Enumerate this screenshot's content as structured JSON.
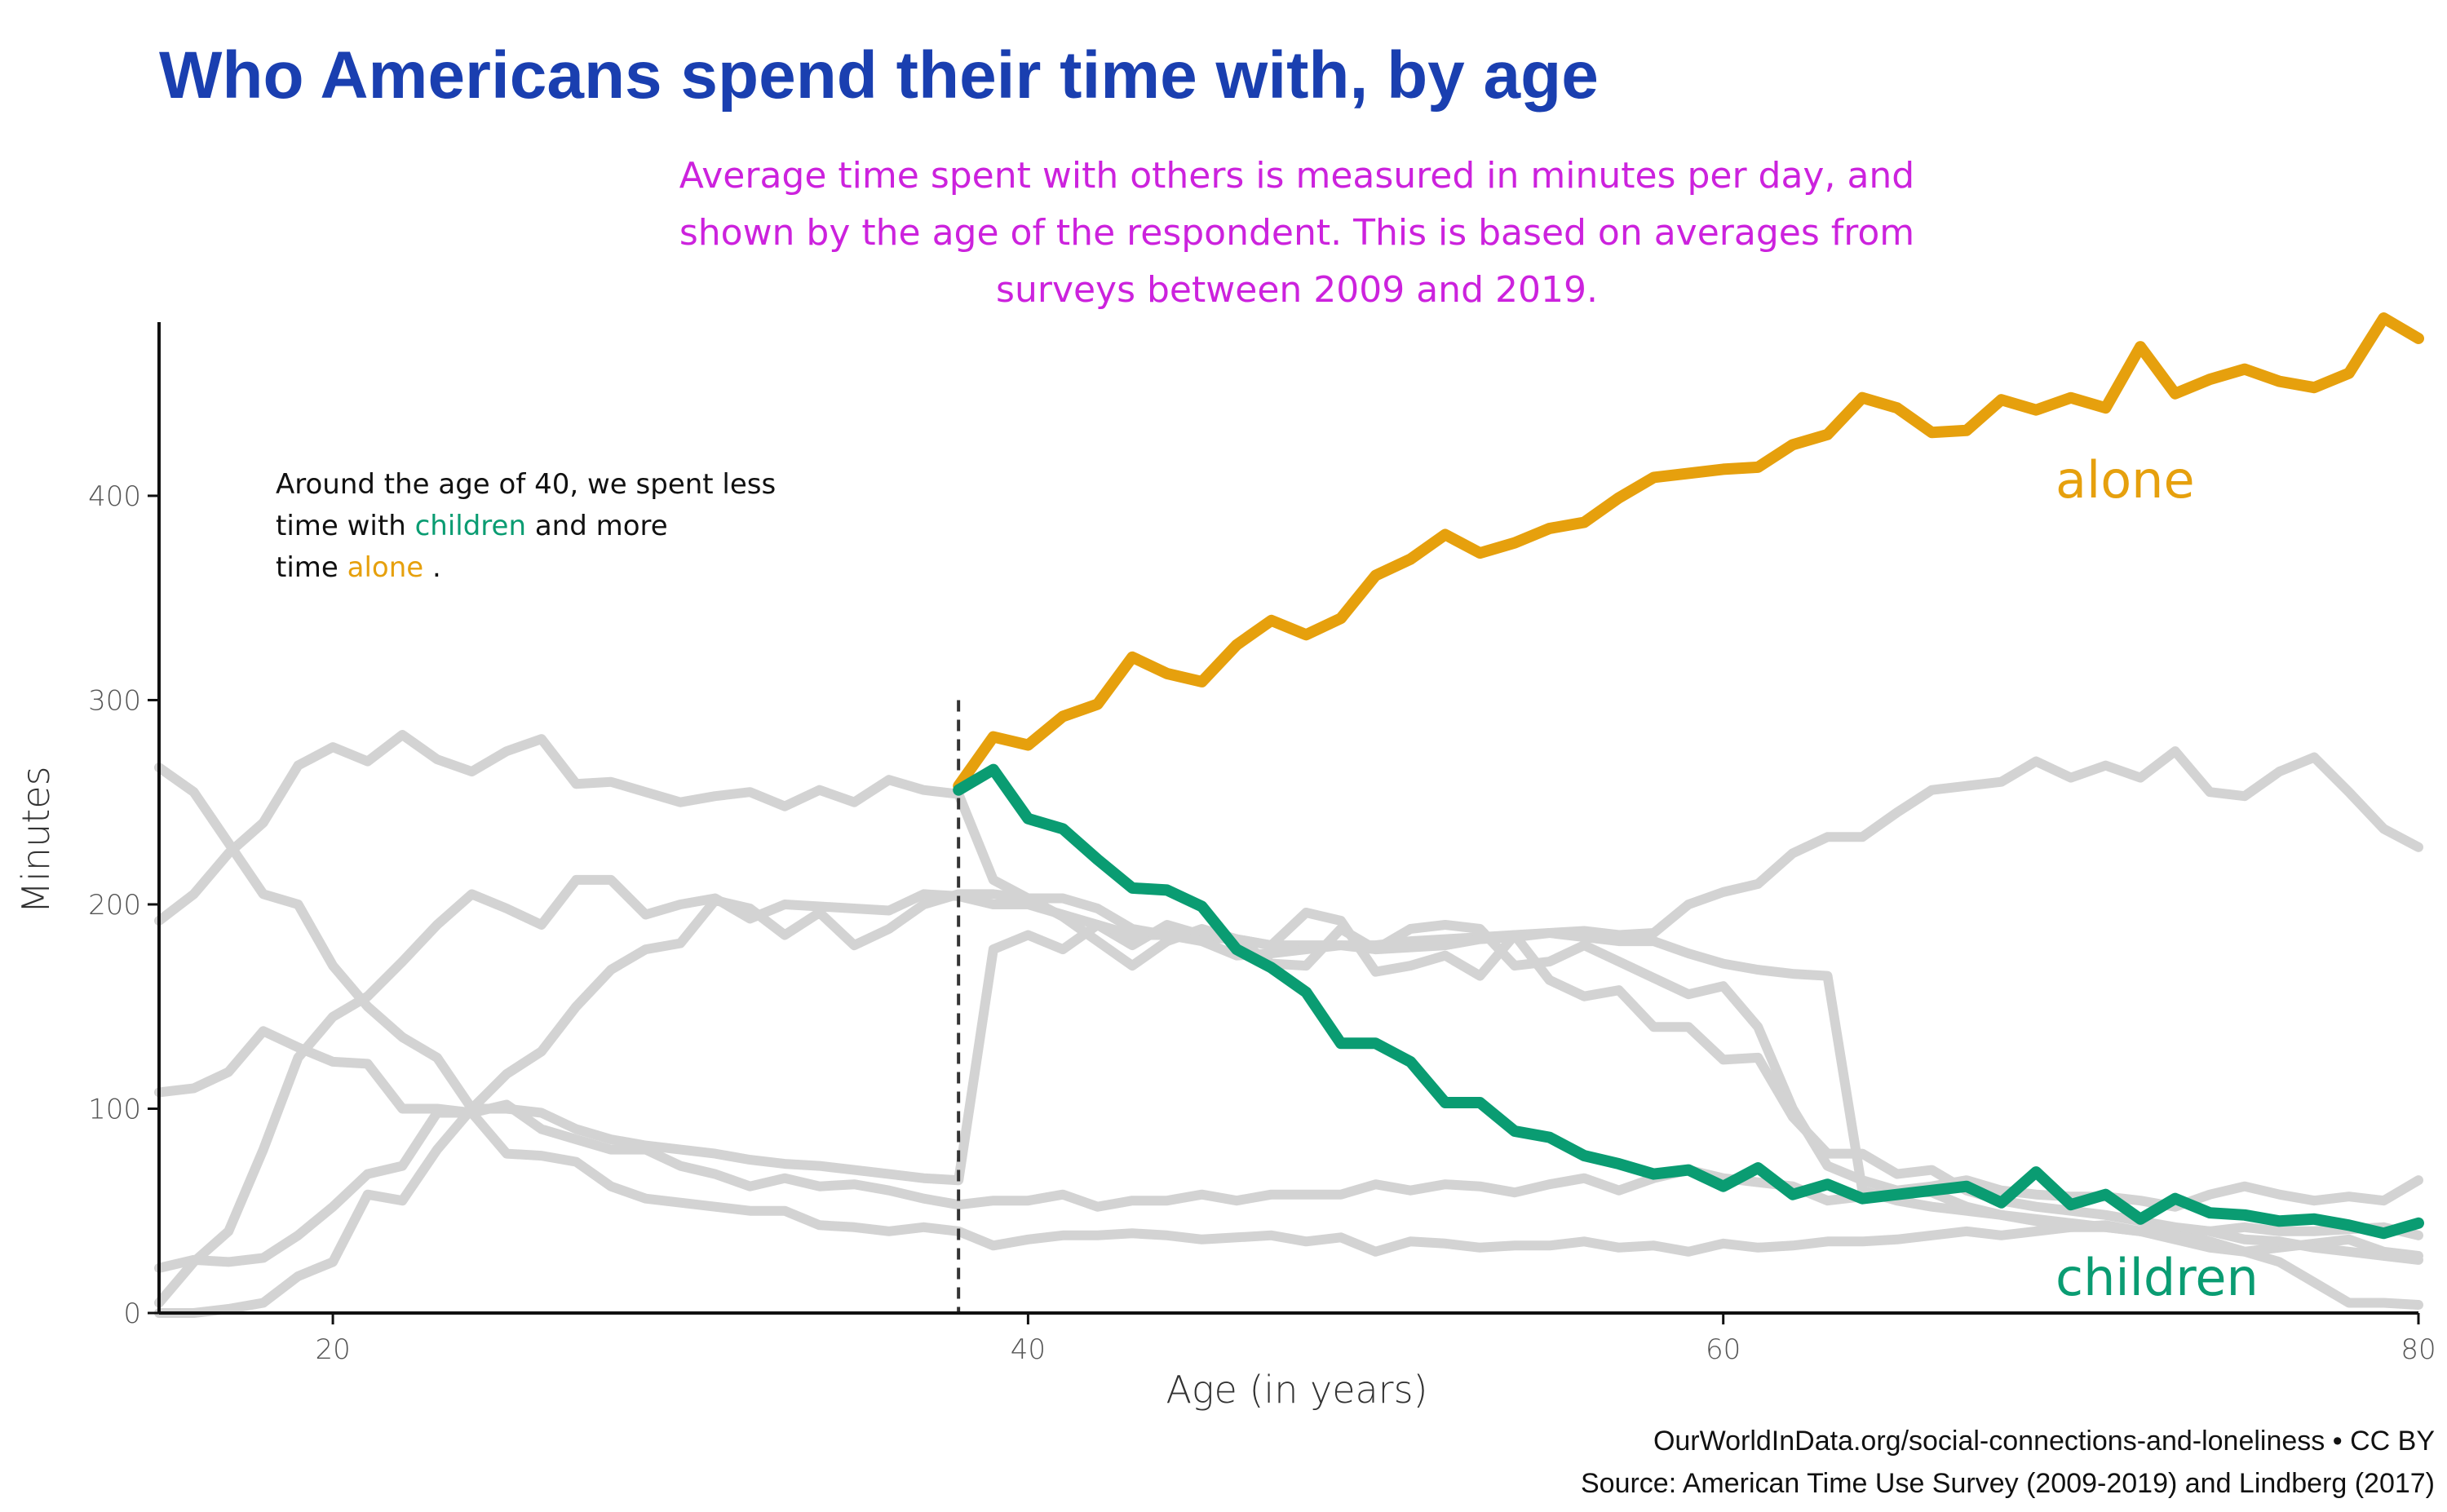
{
  "chart_data": {
    "type": "line",
    "title": "Who Americans spend their time with, by age",
    "subtitle": [
      "Average time spent with others is measured in minutes per day, and",
      "shown by the age of the respondent. This is based on averages from",
      "surveys between 2009 and 2019."
    ],
    "xlabel": "Age (in years)",
    "ylabel": "Minutes",
    "xlim": [
      15,
      80
    ],
    "ylim": [
      0,
      485
    ],
    "xticks": [
      20,
      40,
      60,
      80
    ],
    "yticks": [
      0,
      100,
      200,
      300,
      400
    ],
    "grid": false,
    "marker_age": 38,
    "marker_top": 300,
    "annotation": {
      "line1": "Around the age of 40, we spent less",
      "line2_before": "time with ",
      "line2_highlight": "children",
      "line2_after": " and more",
      "line3_before": "time ",
      "line3_highlight": "alone",
      "line3_after": "."
    },
    "colors": {
      "alone": "#e6a00d",
      "children": "#0a9c72",
      "background_series": "#d3d3d3"
    },
    "highlight_series": [
      {
        "label": "alone",
        "color": "#e6a00d",
        "x": [
          38,
          39,
          40,
          41,
          42,
          43,
          44,
          45,
          46,
          47,
          48,
          49,
          50,
          51,
          52,
          53,
          54,
          55,
          56,
          57,
          58,
          59,
          60,
          61,
          62,
          63,
          64,
          65,
          66,
          67,
          68,
          69,
          70,
          71,
          72,
          73,
          74,
          75,
          76,
          77,
          78,
          79,
          80
        ],
        "y": [
          258,
          282,
          278,
          292,
          298,
          321,
          313,
          309,
          327,
          339,
          332,
          340,
          361,
          369,
          381,
          372,
          377,
          384,
          387,
          399,
          409,
          411,
          413,
          414,
          425,
          430,
          448,
          443,
          431,
          432,
          447,
          442,
          448,
          443,
          473,
          450,
          457,
          462,
          456,
          453,
          460,
          487,
          477
        ]
      },
      {
        "label": "children",
        "color": "#0a9c72",
        "x": [
          38,
          39,
          40,
          41,
          42,
          43,
          44,
          45,
          46,
          47,
          48,
          49,
          50,
          51,
          52,
          53,
          54,
          55,
          56,
          57,
          58,
          59,
          60,
          61,
          62,
          63,
          64,
          65,
          66,
          67,
          68,
          69,
          70,
          71,
          72,
          73,
          74,
          75,
          76,
          77,
          78,
          79,
          80
        ],
        "y": [
          256,
          266,
          242,
          237,
          222,
          208,
          207,
          199,
          178,
          169,
          157,
          132,
          132,
          123,
          103,
          103,
          89,
          86,
          77,
          73,
          68,
          70,
          62,
          71,
          58,
          63,
          56,
          58,
          60,
          62,
          54,
          69,
          53,
          58,
          46,
          56,
          49,
          48,
          45,
          46,
          43,
          39,
          44
        ]
      }
    ],
    "background_series": [
      {
        "x": [
          15,
          16,
          17,
          18,
          19,
          20,
          21,
          22,
          23,
          24,
          25,
          26,
          27,
          28,
          29,
          30,
          31,
          32,
          33,
          34,
          35,
          36,
          37,
          38,
          39,
          40,
          41,
          42,
          43,
          44,
          45,
          46,
          47,
          48,
          49,
          50,
          51,
          52,
          53,
          54,
          55,
          56,
          57,
          58,
          59,
          60,
          61,
          62,
          63,
          64,
          65,
          66,
          67,
          68,
          69,
          70,
          71,
          72,
          73,
          74,
          75,
          76,
          77,
          78,
          79,
          80
        ],
        "y": [
          192,
          205,
          225,
          240,
          268,
          277,
          270,
          283,
          271,
          265,
          275,
          281,
          259,
          260,
          255,
          250,
          253,
          255,
          248,
          256,
          250,
          261,
          256,
          254,
          212,
          203,
          194,
          182,
          170,
          182,
          188,
          183,
          171,
          170,
          188,
          178,
          188,
          190,
          188,
          170,
          172,
          180,
          172,
          164,
          156,
          160,
          140,
          100,
          72,
          65,
          60,
          59,
          52,
          48,
          45,
          42,
          43,
          40,
          36,
          32,
          30,
          32,
          34,
          36,
          30,
          28
        ]
      },
      {
        "x": [
          15,
          16,
          17,
          18,
          19,
          20,
          21,
          22,
          23,
          24,
          25,
          26,
          27,
          28,
          29,
          30,
          31,
          32,
          33,
          34,
          35,
          36,
          37,
          38,
          39,
          40,
          41,
          42,
          43,
          44,
          45,
          46,
          47,
          48,
          49,
          50,
          51,
          52,
          53,
          54,
          55,
          56,
          57,
          58,
          59,
          60,
          61,
          62,
          63,
          64,
          65,
          66,
          67,
          68,
          69,
          70,
          71,
          72,
          73,
          74,
          75,
          76,
          77,
          78,
          79,
          80
        ],
        "y": [
          267,
          255,
          230,
          205,
          200,
          170,
          150,
          135,
          125,
          100,
          100,
          98,
          90,
          85,
          82,
          80,
          78,
          75,
          73,
          72,
          70,
          68,
          66,
          65,
          178,
          185,
          178,
          190,
          180,
          190,
          185,
          183,
          180,
          196,
          192,
          167,
          170,
          175,
          165,
          185,
          163,
          155,
          158,
          140,
          140,
          124,
          125,
          96,
          78,
          78,
          68,
          70,
          60,
          55,
          52,
          50,
          48,
          45,
          42,
          40,
          36,
          35,
          32,
          30,
          28,
          26
        ]
      },
      {
        "x": [
          15,
          16,
          17,
          18,
          19,
          20,
          21,
          22,
          23,
          24,
          25,
          26,
          27,
          28,
          29,
          30,
          31,
          32,
          33,
          34,
          35,
          36,
          37,
          38,
          39,
          40,
          41,
          42,
          43,
          44,
          45,
          46,
          47,
          48,
          49,
          50,
          51,
          52,
          53,
          54,
          55,
          56,
          57,
          58,
          59,
          60,
          61,
          62,
          63,
          64,
          65,
          66,
          67,
          68,
          69,
          70,
          71,
          72,
          73,
          74,
          75,
          76,
          77,
          78,
          79,
          80
        ],
        "y": [
          5,
          25,
          40,
          80,
          125,
          145,
          155,
          172,
          190,
          205,
          198,
          190,
          212,
          212,
          195,
          200,
          203,
          193,
          200,
          199,
          198,
          197,
          205,
          204,
          200,
          200,
          195,
          190,
          185,
          185,
          184,
          183,
          180,
          180,
          180,
          180,
          182,
          183,
          184,
          185,
          186,
          187,
          185,
          186,
          200,
          206,
          210,
          225,
          233,
          233,
          245,
          256,
          258,
          260,
          270,
          262,
          268,
          262,
          275,
          255,
          253,
          265,
          272,
          255,
          237,
          228
        ]
      },
      {
        "x": [
          15,
          16,
          17,
          18,
          19,
          20,
          21,
          22,
          23,
          24,
          25,
          26,
          27,
          28,
          29,
          30,
          31,
          32,
          33,
          34,
          35,
          36,
          37,
          38,
          39,
          40,
          41,
          42,
          43,
          44,
          45,
          46,
          47,
          48,
          49,
          50,
          51,
          52,
          53,
          54,
          55,
          56,
          57,
          58,
          59,
          60,
          61,
          62,
          63,
          64,
          65,
          66,
          67,
          68,
          69,
          70,
          71,
          72,
          73,
          74,
          75,
          76,
          77,
          78,
          79,
          80
        ],
        "y": [
          108,
          110,
          118,
          138,
          130,
          123,
          122,
          100,
          100,
          98,
          78,
          77,
          74,
          62,
          56,
          54,
          52,
          50,
          50,
          43,
          42,
          40,
          42,
          40,
          33,
          36,
          38,
          38,
          39,
          38,
          36,
          37,
          38,
          35,
          37,
          30,
          35,
          34,
          32,
          33,
          33,
          35,
          32,
          33,
          30,
          34,
          32,
          33,
          35,
          35,
          36,
          38,
          40,
          38,
          40,
          42,
          42,
          40,
          41,
          40,
          42,
          40,
          40,
          41,
          42,
          38
        ]
      },
      {
        "x": [
          15,
          16,
          17,
          18,
          19,
          20,
          21,
          22,
          23,
          24,
          25,
          26,
          27,
          28,
          29,
          30,
          31,
          32,
          33,
          34,
          35,
          36,
          37,
          38,
          39,
          40,
          41,
          42,
          43,
          44,
          45,
          46,
          47,
          48,
          49,
          50,
          51,
          52,
          53,
          54,
          55,
          56,
          57,
          58,
          59,
          60,
          61,
          62,
          63,
          64,
          65,
          66,
          67,
          68,
          69,
          70,
          71,
          72,
          73,
          74,
          75,
          76,
          77,
          78,
          79,
          80
        ],
        "y": [
          22,
          26,
          25,
          27,
          38,
          52,
          68,
          72,
          98,
          98,
          102,
          90,
          85,
          80,
          80,
          72,
          68,
          62,
          66,
          62,
          63,
          60,
          56,
          53,
          55,
          55,
          58,
          52,
          55,
          55,
          58,
          55,
          58,
          58,
          58,
          63,
          60,
          63,
          62,
          59,
          63,
          66,
          60,
          66,
          70,
          66,
          64,
          62,
          55,
          57,
          60,
          62,
          65,
          60,
          58,
          57,
          57,
          55,
          52,
          58,
          62,
          58,
          55,
          57,
          55,
          65
        ]
      },
      {
        "x": [
          15,
          16,
          17,
          18,
          19,
          20,
          21,
          22,
          23,
          24,
          25,
          26,
          27,
          28,
          29,
          30,
          31,
          32,
          33,
          34,
          35,
          36,
          37,
          38,
          39,
          40,
          41,
          42,
          43,
          44,
          45,
          46,
          47,
          48,
          49,
          50,
          51,
          52,
          53,
          54,
          55,
          56,
          57,
          58,
          59,
          60,
          61,
          62,
          63,
          64,
          65,
          66,
          67,
          68,
          69,
          70,
          71,
          72,
          73,
          74,
          75,
          76,
          77,
          78,
          79,
          80
        ],
        "y": [
          0,
          0,
          2,
          5,
          18,
          25,
          58,
          55,
          80,
          100,
          117,
          128,
          150,
          168,
          178,
          181,
          202,
          198,
          185,
          196,
          180,
          188,
          200,
          205,
          205,
          203,
          203,
          198,
          188,
          185,
          182,
          175,
          176,
          178,
          180,
          178,
          179,
          180,
          183,
          184,
          186,
          184,
          182,
          182,
          176,
          171,
          168,
          166,
          165,
          60,
          55,
          52,
          50,
          48,
          46,
          44,
          42,
          40,
          38,
          35,
          30,
          25,
          15,
          5,
          5,
          4
        ]
      }
    ],
    "labels": {
      "alone": "alone",
      "children": "children"
    },
    "source": {
      "line1": "OurWorldInData.org/social-connections-and-loneliness  •  CC BY",
      "line2": "Source: American Time Use Survey (2009-2019) and Lindberg (2017)"
    }
  }
}
